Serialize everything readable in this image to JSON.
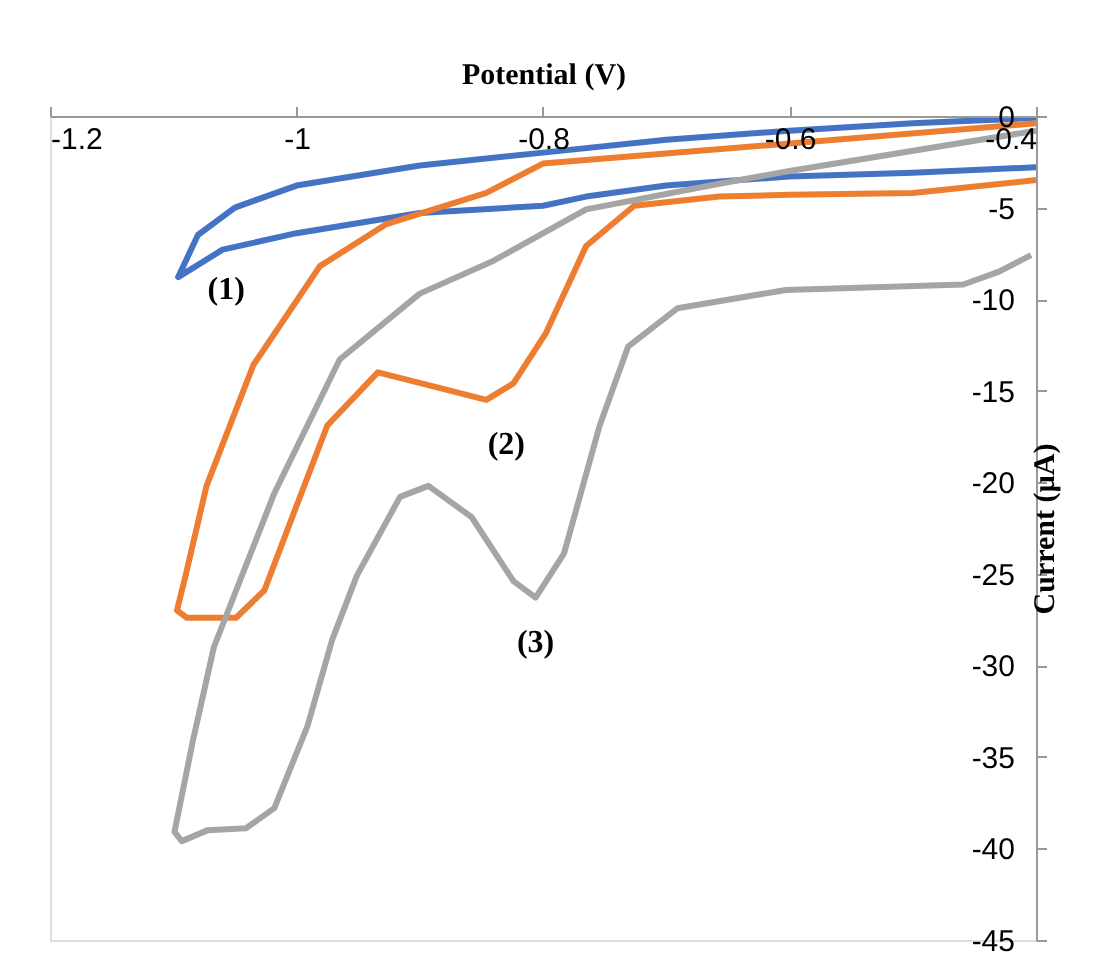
{
  "chart_data": {
    "type": "line",
    "xlabel": "Potential (V)",
    "ylabel": "Current (µA)",
    "xlim": [
      -1.2,
      -0.4
    ],
    "xticks": [
      {
        "value": -1.2,
        "label": "-1.2"
      },
      {
        "value": -1,
        "label": "-1"
      },
      {
        "value": -0.8,
        "label": "-0.8"
      },
      {
        "value": -0.6,
        "label": "-0.6"
      },
      {
        "value": -0.4,
        "label": "-0.4"
      }
    ],
    "ylim": [
      -45,
      0
    ],
    "yticks": [
      {
        "value": 0,
        "label": "0"
      },
      {
        "value": -5,
        "label": "-5"
      },
      {
        "value": -10,
        "label": "-10"
      },
      {
        "value": -15,
        "label": "-15"
      },
      {
        "value": -20,
        "label": "-20"
      },
      {
        "value": -25,
        "label": "-25"
      },
      {
        "value": -30,
        "label": "-30"
      },
      {
        "value": -35,
        "label": "-35"
      },
      {
        "value": -40,
        "label": "-40"
      },
      {
        "value": -45,
        "label": "-45"
      }
    ],
    "grid": false,
    "legend": false,
    "marker": "none",
    "line_style": "solid",
    "annotations": [
      {
        "text": "(1)",
        "x": -1.096,
        "y": -8.8
      },
      {
        "text": "(2)",
        "x": -0.846,
        "y": -15.5
      },
      {
        "text": "(3)",
        "x": -0.806,
        "y": -26.3
      }
    ],
    "series": [
      {
        "color": "#4472c4",
        "x": [
          -0.4,
          -0.5,
          -0.6,
          -0.7,
          -0.8,
          -0.9,
          -1.0,
          -1.05,
          -1.08,
          -1.096,
          -1.06,
          -1.0,
          -0.9,
          -0.8,
          -0.765,
          -0.7,
          -0.6,
          -0.5,
          -0.4
        ],
        "values": [
          -0.1,
          -0.4,
          -0.8,
          -1.3,
          -2.0,
          -2.7,
          -3.8,
          -5.0,
          -6.5,
          -8.8,
          -7.3,
          -6.4,
          -5.3,
          -4.9,
          -4.4,
          -3.8,
          -3.3,
          -3.1,
          -2.8
        ]
      },
      {
        "color": "#ed7d31",
        "x": [
          -0.4,
          -0.6,
          -0.8,
          -0.846,
          -0.927,
          -0.981,
          -1.035,
          -1.073,
          -1.09,
          -1.097,
          -1.089,
          -1.049,
          -1.026,
          -1.004,
          -0.975,
          -0.934,
          -0.893,
          -0.846,
          -0.824,
          -0.798,
          -0.765,
          -0.726,
          -0.657,
          -0.6,
          -0.5,
          -0.4
        ],
        "values": [
          -0.4,
          -1.5,
          -2.6,
          -4.2,
          -5.9,
          -8.2,
          -13.6,
          -20.2,
          -25.1,
          -27.0,
          -27.4,
          -27.4,
          -25.9,
          -22.0,
          -16.9,
          -14.0,
          -14.7,
          -15.5,
          -14.6,
          -11.9,
          -7.1,
          -4.9,
          -4.4,
          -4.3,
          -4.2,
          -3.5
        ]
      },
      {
        "color": "#a5a5a5",
        "x": [
          -0.4,
          -0.6,
          -0.657,
          -0.765,
          -0.84,
          -0.9,
          -0.965,
          -1.018,
          -1.067,
          -1.084,
          -1.099,
          -1.093,
          -1.072,
          -1.041,
          -1.018,
          -0.991,
          -0.971,
          -0.951,
          -0.916,
          -0.893,
          -0.858,
          -0.824,
          -0.806,
          -0.783,
          -0.754,
          -0.731,
          -0.691,
          -0.603,
          -0.459,
          -0.43,
          -0.404
        ],
        "values": [
          -0.8,
          -3.0,
          -3.7,
          -5.1,
          -7.9,
          -9.7,
          -13.3,
          -20.6,
          -29.0,
          -34.1,
          -39.1,
          -39.6,
          -39.0,
          -38.9,
          -37.8,
          -33.3,
          -28.6,
          -25.1,
          -20.8,
          -20.2,
          -21.9,
          -25.4,
          -26.3,
          -23.9,
          -16.9,
          -12.6,
          -10.5,
          -9.5,
          -9.2,
          -8.5,
          -7.6
        ]
      }
    ]
  }
}
